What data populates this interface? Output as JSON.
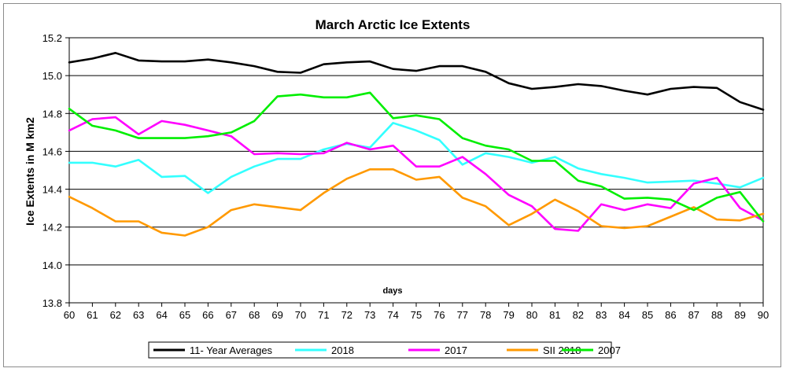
{
  "chart_data": {
    "type": "line",
    "title": "March Arctic Ice Extents",
    "xlabel": "days",
    "ylabel": "Ice Extents in M km2",
    "x": [
      60,
      61,
      62,
      63,
      64,
      65,
      66,
      67,
      68,
      69,
      70,
      71,
      72,
      73,
      74,
      75,
      76,
      77,
      78,
      79,
      80,
      81,
      82,
      83,
      84,
      85,
      86,
      87,
      88,
      89,
      90
    ],
    "xlim": [
      60,
      90
    ],
    "ylim": [
      13.8,
      15.2
    ],
    "yticks": [
      "13.8",
      "14.0",
      "14.2",
      "14.4",
      "14.6",
      "14.8",
      "15.0",
      "15.2"
    ],
    "grid": true,
    "legend_position": "bottom",
    "series": [
      {
        "name": "11- Year Averages",
        "color": "#000000",
        "values": [
          15.07,
          15.09,
          15.12,
          15.08,
          15.075,
          15.075,
          15.085,
          15.07,
          15.05,
          15.02,
          15.015,
          15.06,
          15.07,
          15.075,
          15.035,
          15.025,
          15.05,
          15.05,
          15.02,
          14.96,
          14.93,
          14.94,
          14.955,
          14.945,
          14.92,
          14.9,
          14.93,
          14.94,
          14.935,
          14.86,
          14.82
        ]
      },
      {
        "name": "2018",
        "color": "#33ffff",
        "values": [
          14.54,
          14.54,
          14.52,
          14.555,
          14.465,
          14.47,
          14.38,
          14.465,
          14.52,
          14.56,
          14.56,
          14.61,
          14.64,
          14.62,
          14.75,
          14.71,
          14.66,
          14.53,
          14.59,
          14.57,
          14.54,
          14.57,
          14.51,
          14.48,
          14.46,
          14.435,
          14.44,
          14.445,
          14.43,
          14.41,
          14.46
        ]
      },
      {
        "name": "2017",
        "color": "#ff00ff",
        "values": [
          14.71,
          14.77,
          14.78,
          14.69,
          14.76,
          14.74,
          14.71,
          14.68,
          14.585,
          14.59,
          14.585,
          14.59,
          14.645,
          14.61,
          14.63,
          14.52,
          14.52,
          14.57,
          14.48,
          14.37,
          14.31,
          14.19,
          14.18,
          14.32,
          14.29,
          14.32,
          14.3,
          14.43,
          14.46,
          14.3,
          14.235
        ]
      },
      {
        "name": "SII 2018",
        "color": "#ff9900",
        "values": [
          14.36,
          14.3,
          14.23,
          14.23,
          14.17,
          14.155,
          14.2,
          14.29,
          14.32,
          14.305,
          14.29,
          14.38,
          14.455,
          14.505,
          14.505,
          14.45,
          14.465,
          14.355,
          14.31,
          14.21,
          14.27,
          14.345,
          14.285,
          14.205,
          14.195,
          14.205,
          14.255,
          14.305,
          14.24,
          14.235,
          14.27
        ]
      },
      {
        "name": "2007",
        "color": "#00ee00",
        "values": [
          14.825,
          14.735,
          14.71,
          14.67,
          14.67,
          14.67,
          14.68,
          14.7,
          14.76,
          14.89,
          14.9,
          14.885,
          14.885,
          14.91,
          14.775,
          14.79,
          14.77,
          14.67,
          14.63,
          14.61,
          14.55,
          14.55,
          14.445,
          14.415,
          14.35,
          14.355,
          14.345,
          14.29,
          14.355,
          14.385,
          14.23
        ]
      }
    ]
  }
}
